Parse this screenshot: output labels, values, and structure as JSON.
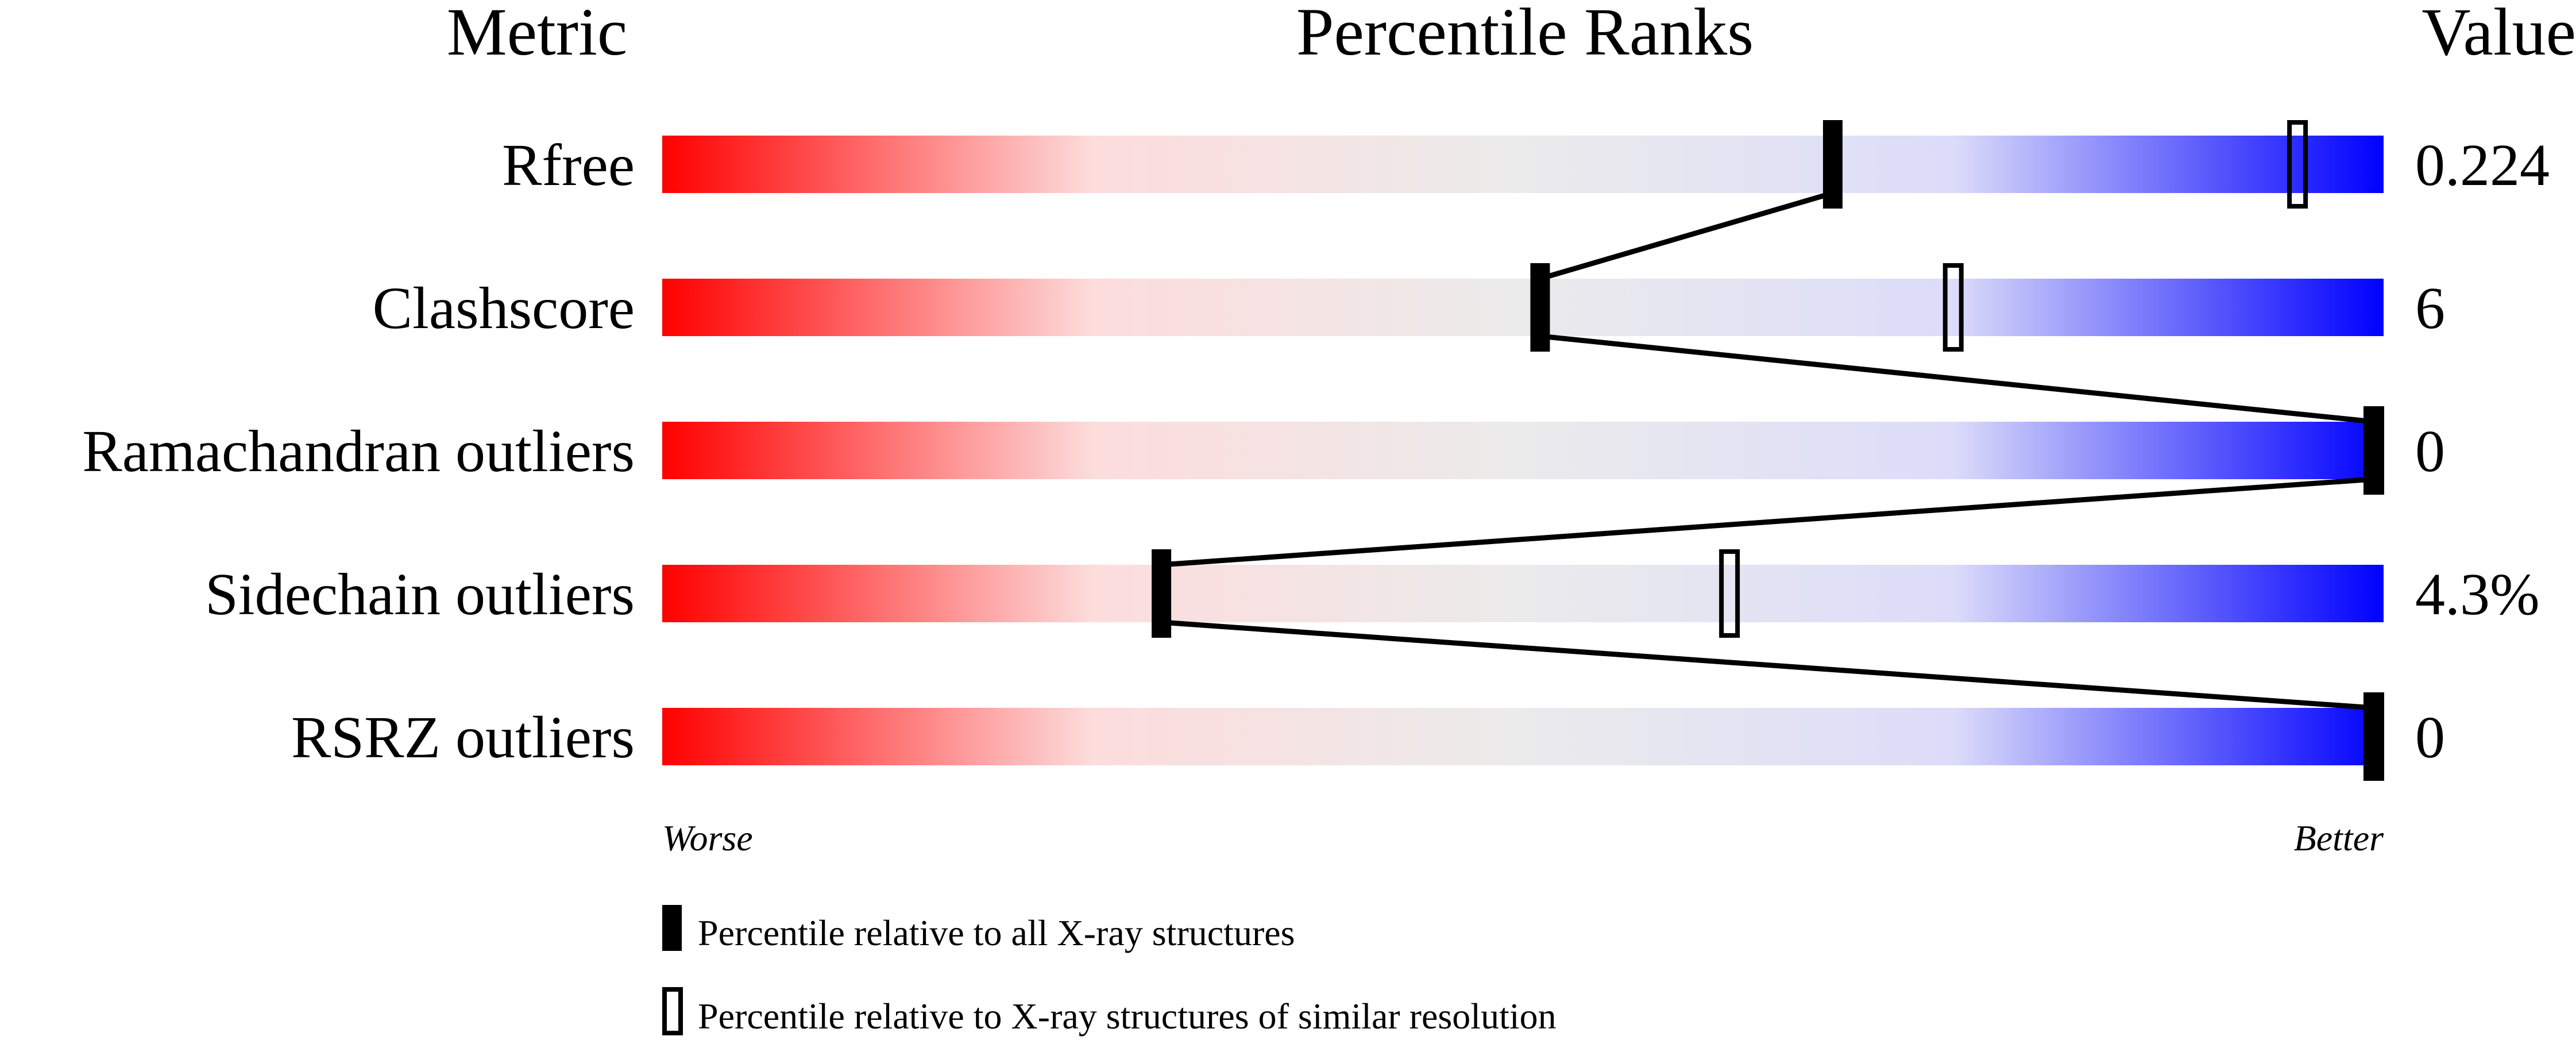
{
  "chart_data": {
    "type": "percentile-bar",
    "headers": {
      "metric": "Metric",
      "ranks": "Percentile Ranks",
      "value": "Value"
    },
    "metrics": [
      {
        "name": "Rfree",
        "value": "0.224",
        "percentile_all": 68,
        "percentile_similar": 95
      },
      {
        "name": "Clashscore",
        "value": "6",
        "percentile_all": 51,
        "percentile_similar": 75
      },
      {
        "name": "Ramachandran outliers",
        "value": "0",
        "percentile_all": 100,
        "percentile_similar": 100
      },
      {
        "name": "Sidechain outliers",
        "value": "4.3%",
        "percentile_all": 29,
        "percentile_similar": 62
      },
      {
        "name": "RSRZ outliers",
        "value": "0",
        "percentile_all": 100,
        "percentile_similar": 100
      }
    ],
    "xlim": [
      0,
      100
    ],
    "axis": {
      "left": "Worse",
      "right": "Better"
    },
    "gradient_colors": [
      "#ff0000",
      "#fddcdc",
      "#ebebeb",
      "#dcdcfa",
      "#0000ff"
    ],
    "legend": {
      "all": "Percentile relative to all X-ray structures",
      "similar": "Percentile relative to X-ray structures of similar resolution"
    }
  }
}
